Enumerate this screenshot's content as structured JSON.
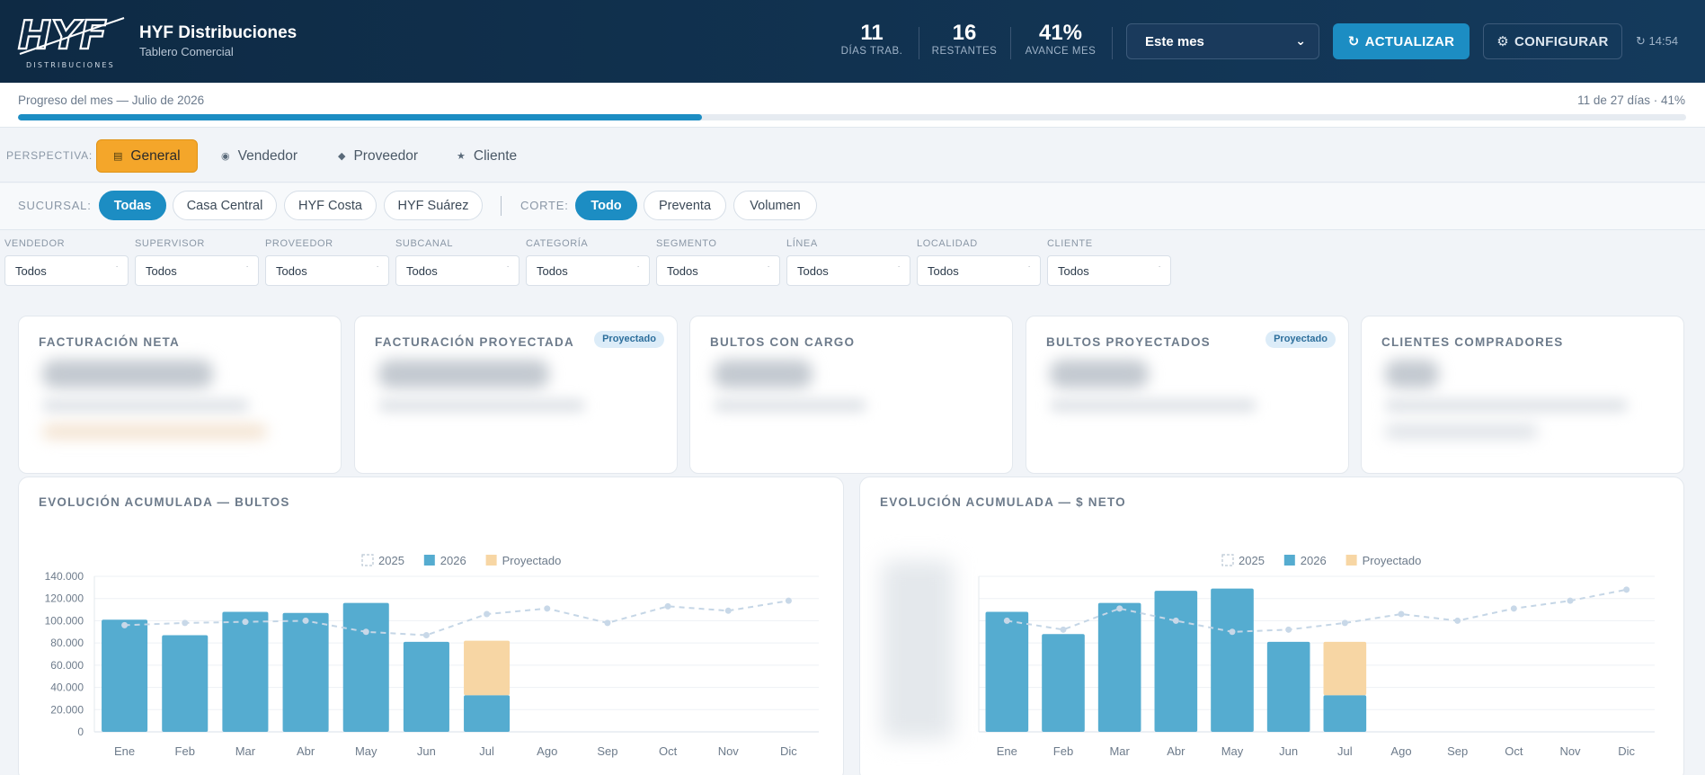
{
  "header": {
    "brand_title": "HYF Distribuciones",
    "brand_subtitle": "Tablero Comercial",
    "logo_text": "HYF",
    "logo_subtext": "DISTRIBUCIONES",
    "stats": [
      {
        "value": "11",
        "label": "DÍAS TRAB."
      },
      {
        "value": "16",
        "label": "RESTANTES"
      },
      {
        "value": "41%",
        "label": "AVANCE MES"
      }
    ],
    "period_value": "Este mes",
    "update_label": "ACTUALIZAR",
    "config_label": "CONFIGURAR",
    "clock": "14:54"
  },
  "progress": {
    "label": "Progreso del mes — Julio de 2026",
    "right_text": "11 de 27 días · 41%",
    "fraction": 0.41
  },
  "perspective": {
    "label": "PERSPECTIVA:",
    "options": [
      {
        "label": "General",
        "icon": "grid-icon",
        "active": true
      },
      {
        "label": "Vendedor",
        "icon": "target-icon",
        "active": false
      },
      {
        "label": "Proveedor",
        "icon": "diamond-icon",
        "active": false
      },
      {
        "label": "Cliente",
        "icon": "star-icon",
        "active": false
      }
    ]
  },
  "branch": {
    "label": "SUCURSAL:",
    "options": [
      "Todas",
      "Casa Central",
      "HYF Costa",
      "HYF Suárez"
    ],
    "active": "Todas",
    "cut_label": "CORTE:",
    "cut_options": [
      "Todo",
      "Preventa",
      "Volumen"
    ],
    "cut_active": "Todo"
  },
  "filters": [
    {
      "label": "VENDEDOR",
      "value": "Todos"
    },
    {
      "label": "SUPERVISOR",
      "value": "Todos"
    },
    {
      "label": "PROVEEDOR",
      "value": "Todos"
    },
    {
      "label": "SUBCANAL",
      "value": "Todos"
    },
    {
      "label": "CATEGORÍA",
      "value": "Todos"
    },
    {
      "label": "SEGMENTO",
      "value": "Todos"
    },
    {
      "label": "LÍNEA",
      "value": "Todos"
    },
    {
      "label": "LOCALIDAD",
      "value": "Todos"
    },
    {
      "label": "CLIENTE",
      "value": "Todos"
    }
  ],
  "kpis": [
    {
      "title": "FACTURACIÓN NETA",
      "badge": ""
    },
    {
      "title": "FACTURACIÓN PROYECTADA",
      "badge": "Proyectado"
    },
    {
      "title": "BULTOS CON CARGO",
      "badge": ""
    },
    {
      "title": "BULTOS PROYECTADOS",
      "badge": "Proyectado"
    },
    {
      "title": "CLIENTES COMPRADORES",
      "badge": ""
    }
  ],
  "colors": {
    "accent": "#1c8dc3",
    "bar_2026": "#55acd0",
    "bar_projected": "#f7d6a4",
    "line_2025": "#c5d6e6",
    "active_perspective": "#f4a62a"
  },
  "chart_data": [
    {
      "type": "bar",
      "title": "EVOLUCIÓN ACUMULADA — BULTOS",
      "categories": [
        "Ene",
        "Feb",
        "Mar",
        "Abr",
        "May",
        "Jun",
        "Jul",
        "Ago",
        "Sep",
        "Oct",
        "Nov",
        "Dic"
      ],
      "legend": [
        "2025",
        "2026",
        "Proyectado"
      ],
      "series": [
        {
          "name": "2025",
          "kind": "line",
          "values": [
            96000,
            98000,
            99000,
            100000,
            90000,
            87000,
            106000,
            111000,
            98000,
            113000,
            109000,
            118000
          ]
        },
        {
          "name": "2026",
          "kind": "bar",
          "values": [
            101000,
            87000,
            108000,
            107000,
            116000,
            81000,
            33000,
            null,
            null,
            null,
            null,
            null
          ]
        },
        {
          "name": "Proyectado",
          "kind": "bar-stack",
          "values": [
            null,
            null,
            null,
            null,
            null,
            null,
            49000,
            null,
            null,
            null,
            null,
            null
          ]
        }
      ],
      "yticks": [
        "0",
        "20.000",
        "40.000",
        "60.000",
        "80.000",
        "100.000",
        "120.000",
        "140.000"
      ],
      "ylim": [
        0,
        140000
      ],
      "show_y_labels": true
    },
    {
      "type": "bar",
      "title": "EVOLUCIÓN ACUMULADA — $ NETO",
      "categories": [
        "Ene",
        "Feb",
        "Mar",
        "Abr",
        "May",
        "Jun",
        "Jul",
        "Ago",
        "Sep",
        "Oct",
        "Nov",
        "Dic"
      ],
      "legend": [
        "2025",
        "2026",
        "Proyectado"
      ],
      "series": [
        {
          "name": "2025",
          "kind": "line",
          "values": [
            100,
            92,
            111,
            100,
            90,
            92,
            98,
            106,
            100,
            111,
            118,
            128
          ]
        },
        {
          "name": "2026",
          "kind": "bar",
          "values": [
            108,
            88,
            116,
            127,
            129,
            81,
            33,
            null,
            null,
            null,
            null,
            null
          ]
        },
        {
          "name": "Proyectado",
          "kind": "bar-stack",
          "values": [
            null,
            null,
            null,
            null,
            null,
            null,
            48,
            null,
            null,
            null,
            null,
            null
          ]
        }
      ],
      "ylim": [
        0,
        140
      ],
      "show_y_labels": false
    }
  ]
}
